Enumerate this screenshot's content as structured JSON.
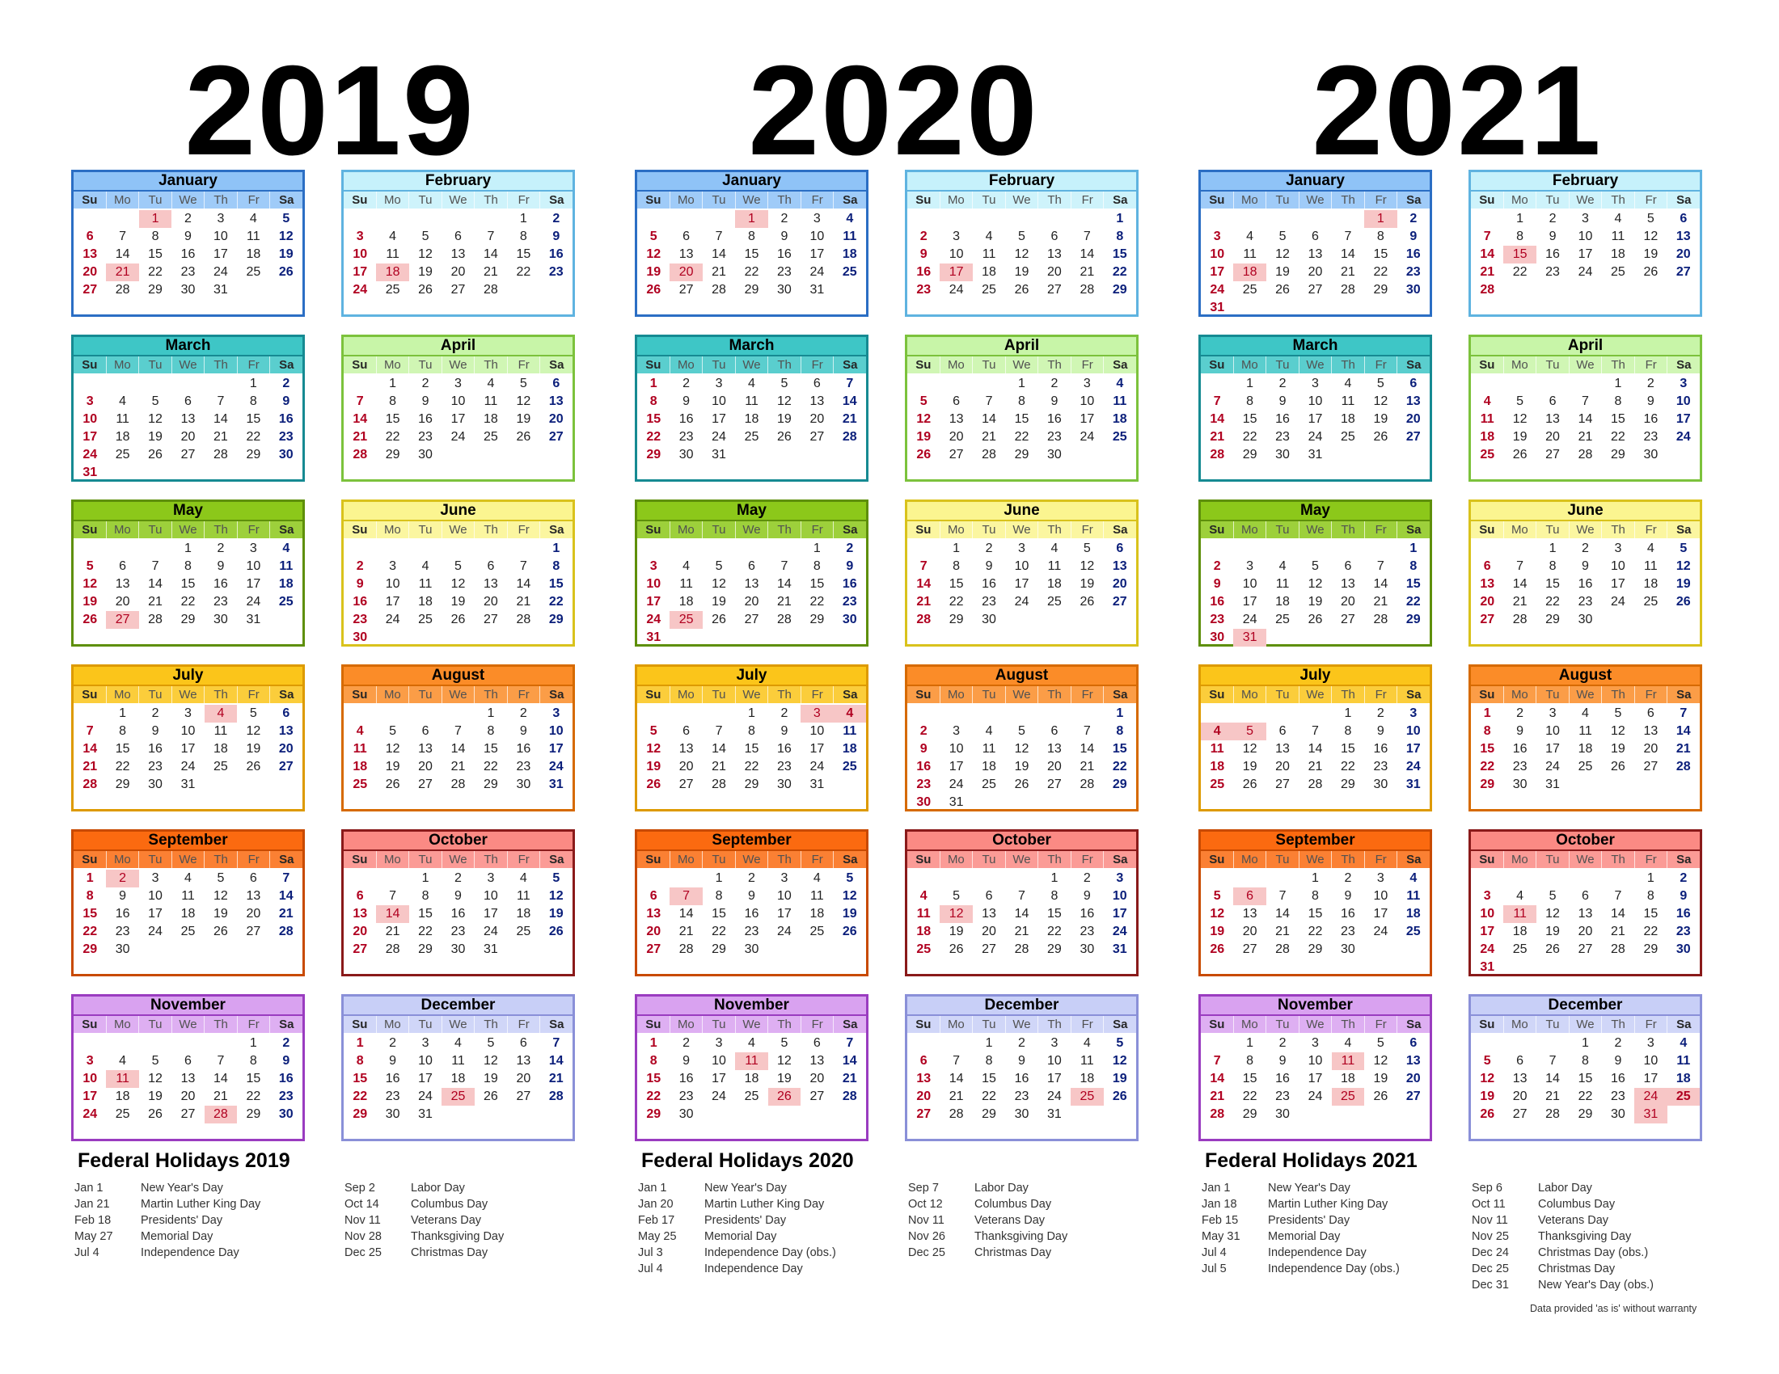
{
  "weekdays": [
    "Su",
    "Mo",
    "Tu",
    "We",
    "Th",
    "Fr",
    "Sa"
  ],
  "month_names": [
    "January",
    "February",
    "March",
    "April",
    "May",
    "June",
    "July",
    "August",
    "September",
    "October",
    "November",
    "December"
  ],
  "month_colors": [
    {
      "head": "#8fc3f7",
      "border": "#2b6ec4"
    },
    {
      "head": "#c6f1fb",
      "border": "#5fb3e0"
    },
    {
      "head": "#3ec6c6",
      "border": "#168a92"
    },
    {
      "head": "#c8f5a8",
      "border": "#7cc23c"
    },
    {
      "head": "#8cc81a",
      "border": "#5e8f0a"
    },
    {
      "head": "#fbf590",
      "border": "#d9c21c"
    },
    {
      "head": "#fbc51a",
      "border": "#dd9a00"
    },
    {
      "head": "#fb8c28",
      "border": "#d66a00"
    },
    {
      "head": "#fb6a10",
      "border": "#c84a00"
    },
    {
      "head": "#fb8a84",
      "border": "#8a1a1a"
    },
    {
      "head": "#d9a2f0",
      "border": "#9a3cc0"
    },
    {
      "head": "#c8cff7",
      "border": "#8a90d8"
    }
  ],
  "years": [
    {
      "title": "2019",
      "year": 2019,
      "holiday_days": {
        "0": [
          1,
          21
        ],
        "1": [
          18
        ],
        "4": [
          27
        ],
        "6": [
          4
        ],
        "8": [
          2
        ],
        "9": [
          14
        ],
        "10": [
          11,
          28
        ],
        "11": [
          25
        ]
      },
      "holidays_title": "Federal Holidays 2019",
      "holidays_left": [
        {
          "date": "Jan 1",
          "name": "New Year's Day"
        },
        {
          "date": "Jan 21",
          "name": "Martin Luther King Day"
        },
        {
          "date": "Feb 18",
          "name": "Presidents' Day"
        },
        {
          "date": "May 27",
          "name": "Memorial Day"
        },
        {
          "date": "Jul 4",
          "name": "Independence Day"
        }
      ],
      "holidays_right": [
        {
          "date": "Sep 2",
          "name": "Labor Day"
        },
        {
          "date": "Oct 14",
          "name": "Columbus Day"
        },
        {
          "date": "Nov 11",
          "name": "Veterans Day"
        },
        {
          "date": "Nov 28",
          "name": "Thanksgiving Day"
        },
        {
          "date": "Dec 25",
          "name": "Christmas Day"
        }
      ]
    },
    {
      "title": "2020",
      "year": 2020,
      "holiday_days": {
        "0": [
          1,
          20
        ],
        "1": [
          17
        ],
        "4": [
          25
        ],
        "6": [
          3,
          4
        ],
        "8": [
          7
        ],
        "9": [
          12
        ],
        "10": [
          11,
          26
        ],
        "11": [
          25
        ]
      },
      "holidays_title": "Federal Holidays 2020",
      "holidays_left": [
        {
          "date": "Jan 1",
          "name": "New Year's Day"
        },
        {
          "date": "Jan 20",
          "name": "Martin Luther King Day"
        },
        {
          "date": "Feb 17",
          "name": "Presidents' Day"
        },
        {
          "date": "May 25",
          "name": "Memorial Day"
        },
        {
          "date": "Jul 3",
          "name": "Independence Day (obs.)"
        },
        {
          "date": "Jul 4",
          "name": "Independence Day"
        }
      ],
      "holidays_right": [
        {
          "date": "Sep 7",
          "name": "Labor Day"
        },
        {
          "date": "Oct 12",
          "name": "Columbus Day"
        },
        {
          "date": "Nov 11",
          "name": "Veterans Day"
        },
        {
          "date": "Nov 26",
          "name": "Thanksgiving Day"
        },
        {
          "date": "Dec 25",
          "name": "Christmas Day"
        }
      ]
    },
    {
      "title": "2021",
      "year": 2021,
      "holiday_days": {
        "0": [
          1,
          18
        ],
        "1": [
          15
        ],
        "4": [
          31
        ],
        "6": [
          4,
          5
        ],
        "8": [
          6
        ],
        "9": [
          11
        ],
        "10": [
          11,
          25
        ],
        "11": [
          24,
          25,
          31
        ]
      },
      "holidays_title": "Federal Holidays 2021",
      "holidays_left": [
        {
          "date": "Jan 1",
          "name": "New Year's Day"
        },
        {
          "date": "Jan 18",
          "name": "Martin Luther King Day"
        },
        {
          "date": "Feb 15",
          "name": "Presidents' Day"
        },
        {
          "date": "May 31",
          "name": "Memorial Day"
        },
        {
          "date": "Jul 4",
          "name": "Independence Day"
        },
        {
          "date": "Jul 5",
          "name": "Independence Day (obs.)"
        }
      ],
      "holidays_right": [
        {
          "date": "Sep 6",
          "name": "Labor Day"
        },
        {
          "date": "Oct 11",
          "name": "Columbus Day"
        },
        {
          "date": "Nov 11",
          "name": "Veterans Day"
        },
        {
          "date": "Nov 25",
          "name": "Thanksgiving Day"
        },
        {
          "date": "Dec 24",
          "name": "Christmas Day (obs.)"
        },
        {
          "date": "Dec 25",
          "name": "Christmas Day"
        },
        {
          "date": "Dec 31",
          "name": "New Year's Day (obs.)"
        }
      ]
    }
  ],
  "disclaimer": "Data provided 'as is' without warranty"
}
